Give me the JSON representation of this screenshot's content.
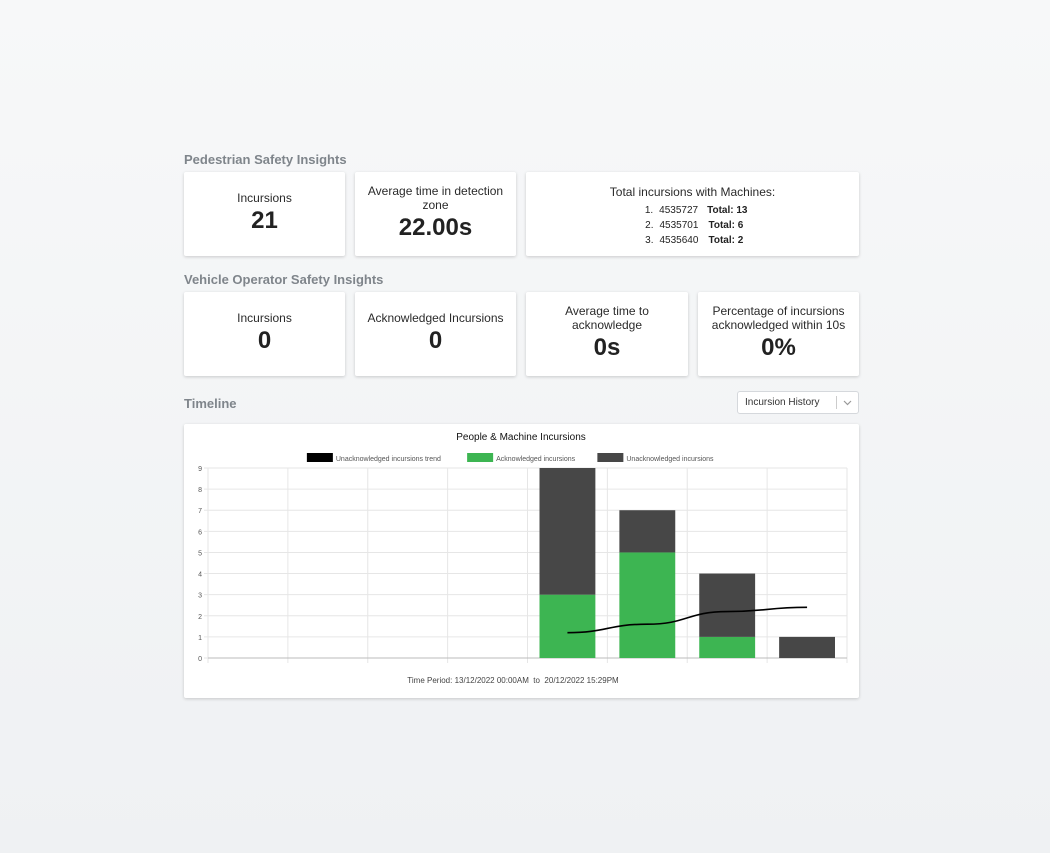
{
  "pedestrian": {
    "title": "Pedestrian Safety Insights",
    "incursions_label": "Incursions",
    "incursions_value": "21",
    "avg_time_label": "Average time in detection zone",
    "avg_time_value": "22.00s",
    "machines_title": "Total incursions with Machines:",
    "machines": [
      {
        "num": "1.",
        "id": "4535727",
        "total": "Total: 13"
      },
      {
        "num": "2.",
        "id": "4535701",
        "total": "Total: 6"
      },
      {
        "num": "3.",
        "id": "4535640",
        "total": "Total: 2"
      }
    ]
  },
  "vehicle": {
    "title": "Vehicle Operator Safety Insights",
    "cards": [
      {
        "label": "Incursions",
        "value": "0"
      },
      {
        "label": "Acknowledged Incursions",
        "value": "0"
      },
      {
        "label": "Average time to acknowledge",
        "value": "0s"
      },
      {
        "label": "Percentage of incursions acknowledged within 10s",
        "value": "0%"
      }
    ]
  },
  "timeline": {
    "title": "Timeline",
    "select_value": "Incursion History",
    "select_icon": "chevron-down-icon"
  },
  "chart_data": {
    "type": "bar",
    "title": "People & Machine Incursions",
    "legend": [
      "Unacknowledged incursions trend",
      "Acknowledged incursions",
      "Unacknowledged incursions"
    ],
    "legend_placement": "top",
    "categories": [
      "",
      "",
      "",
      "",
      "",
      "",
      "",
      ""
    ],
    "series": [
      {
        "name": "Acknowledged incursions",
        "values": [
          0,
          0,
          0,
          0,
          3,
          5,
          1,
          0
        ],
        "color": "#3db552"
      },
      {
        "name": "Unacknowledged incursions",
        "values": [
          0,
          0,
          0,
          0,
          6,
          2,
          3,
          1
        ],
        "color": "#474747"
      },
      {
        "name": "Unacknowledged incursions trend",
        "type": "line",
        "values": [
          null,
          null,
          null,
          null,
          1.2,
          1.6,
          2.2,
          2.4
        ],
        "color": "#000000"
      }
    ],
    "yticks": [
      "0",
      "1",
      "2",
      "3",
      "4",
      "5",
      "6",
      "7",
      "8",
      "9"
    ],
    "ylim": [
      0,
      9
    ],
    "grid": true,
    "footer": "Time Period: 13/12/2022 00:00AM  to  20/12/2022 15:29PM"
  }
}
